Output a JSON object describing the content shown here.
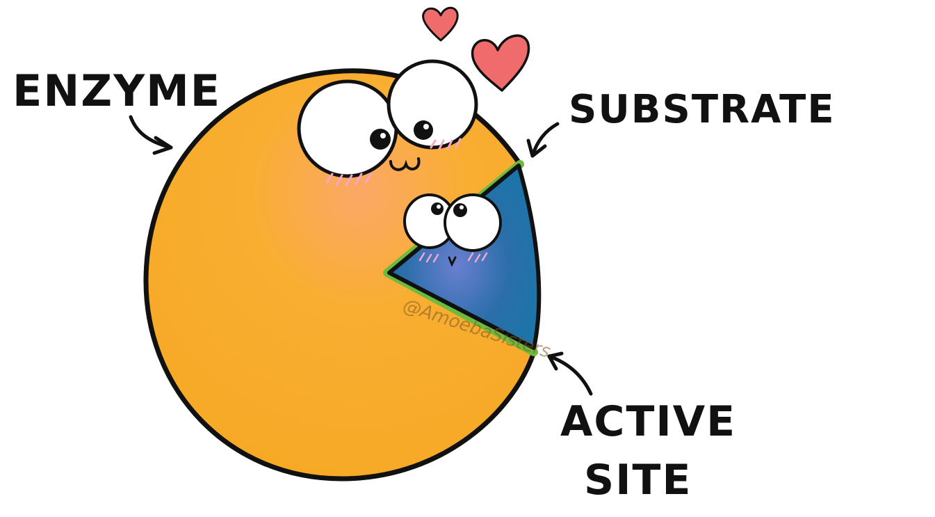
{
  "labels": {
    "enzyme": "ENZYME",
    "substrate": "SUBSTRATE",
    "active_site_line1": "ACTIVE",
    "active_site_line2": "SITE"
  },
  "watermark": "@AmoebaSisters",
  "colors": {
    "enzyme_fill": "#F9AD2E",
    "enzyme_outline": "#111111",
    "substrate_fill": "#1F6FA5",
    "active_site_edge": "#6DBB3C",
    "heart": "#F06B6B",
    "blush": "#F6A6C8",
    "eye_white": "#FFFFFF"
  },
  "icons": [
    "heart-icon",
    "arrow-icon"
  ]
}
